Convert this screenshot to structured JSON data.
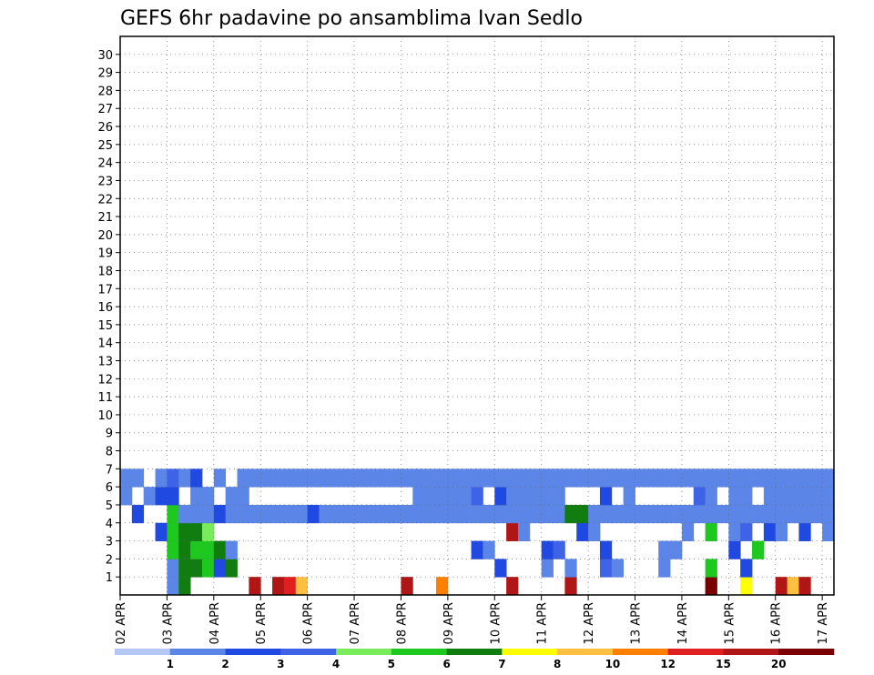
{
  "chart_data": {
    "type": "heatmap",
    "title": "GEFS 6hr padavine po ansamblima Ivan Sedlo",
    "xlabel": "",
    "ylabel": "",
    "x_tick_labels": [
      "02 APR",
      "03 APR",
      "04 APR",
      "05 APR",
      "06 APR",
      "07 APR",
      "08 APR",
      "09 APR",
      "10 APR",
      "11 APR",
      "12 APR",
      "13 APR",
      "14 APR",
      "15 APR",
      "16 APR",
      "17 APR"
    ],
    "y_tick_labels": [
      "1",
      "2",
      "3",
      "4",
      "5",
      "6",
      "7",
      "8",
      "9",
      "10",
      "11",
      "12",
      "13",
      "14",
      "15",
      "16",
      "17",
      "18",
      "19",
      "20",
      "21",
      "22",
      "23",
      "24",
      "25",
      "26",
      "27",
      "28",
      "29",
      "30"
    ],
    "members": 31,
    "steps": 61,
    "steps_per_day": 4,
    "grid": true,
    "colorbar": {
      "levels": [
        "1",
        "2",
        "3",
        "4",
        "5",
        "6",
        "7",
        "8",
        "10",
        "12",
        "15",
        "20"
      ],
      "colors": [
        "#b3c8f5",
        "#5b86e8",
        "#1f49e0",
        "#3f63e6",
        "#78ec5a",
        "#1ec81e",
        "#117d11",
        "#ffff00",
        "#ffbf40",
        "#ff7f00",
        "#e02020",
        "#b01616",
        "#7a0000"
      ]
    },
    "cells": [
      [
        0,
        4,
        1
      ],
      [
        0,
        5,
        6
      ],
      [
        0,
        11,
        11
      ],
      [
        0,
        13,
        11
      ],
      [
        0,
        14,
        10
      ],
      [
        0,
        15,
        8
      ],
      [
        0,
        24,
        11
      ],
      [
        0,
        27,
        9
      ],
      [
        0,
        33,
        11
      ],
      [
        0,
        38,
        11
      ],
      [
        0,
        50,
        12
      ],
      [
        0,
        53,
        7
      ],
      [
        0,
        56,
        11
      ],
      [
        0,
        57,
        8
      ],
      [
        0,
        58,
        11
      ],
      [
        1,
        4,
        1
      ],
      [
        1,
        5,
        6
      ],
      [
        1,
        6,
        6
      ],
      [
        1,
        7,
        5
      ],
      [
        1,
        8,
        2
      ],
      [
        1,
        9,
        6
      ],
      [
        1,
        32,
        2
      ],
      [
        1,
        36,
        1
      ],
      [
        1,
        38,
        1
      ],
      [
        1,
        41,
        3
      ],
      [
        1,
        42,
        1
      ],
      [
        1,
        46,
        1
      ],
      [
        1,
        50,
        5
      ],
      [
        1,
        53,
        2
      ],
      [
        2,
        4,
        5
      ],
      [
        2,
        5,
        6
      ],
      [
        2,
        6,
        5
      ],
      [
        2,
        7,
        5
      ],
      [
        2,
        8,
        6
      ],
      [
        2,
        9,
        1
      ],
      [
        2,
        30,
        2
      ],
      [
        2,
        31,
        1
      ],
      [
        2,
        36,
        2
      ],
      [
        2,
        37,
        3
      ],
      [
        2,
        41,
        2
      ],
      [
        2,
        46,
        1
      ],
      [
        2,
        47,
        1
      ],
      [
        2,
        52,
        2
      ],
      [
        2,
        54,
        5
      ],
      [
        3,
        3,
        2
      ],
      [
        3,
        4,
        5
      ],
      [
        3,
        5,
        6
      ],
      [
        3,
        6,
        6
      ],
      [
        3,
        7,
        4
      ],
      [
        3,
        33,
        11
      ],
      [
        3,
        34,
        1
      ],
      [
        3,
        39,
        2
      ],
      [
        3,
        40,
        1
      ],
      [
        3,
        48,
        1
      ],
      [
        3,
        50,
        5
      ],
      [
        3,
        52,
        1
      ],
      [
        3,
        53,
        3
      ],
      [
        3,
        55,
        2
      ],
      [
        3,
        56,
        1
      ],
      [
        3,
        58,
        2
      ],
      [
        3,
        60,
        1
      ],
      [
        4,
        1,
        2
      ],
      [
        4,
        4,
        5
      ],
      [
        4,
        5,
        1
      ],
      [
        4,
        6,
        1
      ],
      [
        4,
        7,
        1
      ],
      [
        4,
        8,
        2
      ],
      [
        4,
        9,
        1
      ],
      [
        4,
        10,
        1
      ],
      [
        4,
        11,
        1
      ],
      [
        4,
        12,
        1
      ],
      [
        4,
        13,
        1
      ],
      [
        4,
        14,
        1
      ],
      [
        4,
        15,
        1
      ],
      [
        4,
        16,
        2
      ],
      [
        4,
        17,
        1
      ],
      [
        4,
        18,
        1
      ],
      [
        4,
        19,
        1
      ],
      [
        4,
        20,
        1
      ],
      [
        4,
        21,
        1
      ],
      [
        4,
        22,
        1
      ],
      [
        4,
        23,
        1
      ],
      [
        4,
        24,
        1
      ],
      [
        4,
        25,
        1
      ],
      [
        4,
        26,
        1
      ],
      [
        4,
        27,
        1
      ],
      [
        4,
        28,
        1
      ],
      [
        4,
        29,
        1
      ],
      [
        4,
        30,
        1
      ],
      [
        4,
        31,
        1
      ],
      [
        4,
        32,
        1
      ],
      [
        4,
        33,
        1
      ],
      [
        4,
        34,
        1
      ],
      [
        4,
        35,
        1
      ],
      [
        4,
        36,
        1
      ],
      [
        4,
        37,
        1
      ],
      [
        4,
        38,
        6
      ],
      [
        4,
        39,
        6
      ],
      [
        4,
        40,
        1
      ],
      [
        4,
        41,
        1
      ],
      [
        4,
        42,
        1
      ],
      [
        4,
        43,
        1
      ],
      [
        4,
        44,
        1
      ],
      [
        4,
        45,
        1
      ],
      [
        4,
        46,
        1
      ],
      [
        4,
        47,
        1
      ],
      [
        4,
        48,
        1
      ],
      [
        4,
        49,
        1
      ],
      [
        4,
        50,
        1
      ],
      [
        4,
        51,
        1
      ],
      [
        4,
        52,
        1
      ],
      [
        4,
        53,
        1
      ],
      [
        4,
        54,
        1
      ],
      [
        4,
        55,
        1
      ],
      [
        4,
        56,
        1
      ],
      [
        4,
        57,
        1
      ],
      [
        4,
        58,
        1
      ],
      [
        4,
        59,
        1
      ],
      [
        4,
        60,
        1
      ],
      [
        5,
        0,
        1
      ],
      [
        5,
        2,
        1
      ],
      [
        5,
        3,
        2
      ],
      [
        5,
        4,
        2
      ],
      [
        5,
        6,
        1
      ],
      [
        5,
        7,
        1
      ],
      [
        5,
        9,
        1
      ],
      [
        5,
        10,
        1
      ],
      [
        5,
        25,
        1
      ],
      [
        5,
        26,
        1
      ],
      [
        5,
        27,
        1
      ],
      [
        5,
        28,
        1
      ],
      [
        5,
        29,
        1
      ],
      [
        5,
        30,
        3
      ],
      [
        5,
        32,
        2
      ],
      [
        5,
        33,
        1
      ],
      [
        5,
        34,
        1
      ],
      [
        5,
        35,
        1
      ],
      [
        5,
        36,
        1
      ],
      [
        5,
        37,
        1
      ],
      [
        5,
        41,
        2
      ],
      [
        5,
        43,
        1
      ],
      [
        5,
        49,
        3
      ],
      [
        5,
        50,
        1
      ],
      [
        5,
        52,
        1
      ],
      [
        5,
        53,
        1
      ],
      [
        5,
        55,
        1
      ],
      [
        5,
        56,
        1
      ],
      [
        5,
        57,
        1
      ],
      [
        5,
        58,
        1
      ],
      [
        5,
        59,
        1
      ],
      [
        5,
        60,
        1
      ],
      [
        6,
        0,
        1
      ],
      [
        6,
        1,
        1
      ],
      [
        6,
        3,
        1
      ],
      [
        6,
        4,
        3
      ],
      [
        6,
        5,
        1
      ],
      [
        6,
        6,
        2
      ],
      [
        6,
        8,
        1
      ],
      [
        6,
        10,
        1
      ],
      [
        6,
        11,
        1
      ],
      [
        6,
        12,
        1
      ],
      [
        6,
        13,
        1
      ],
      [
        6,
        14,
        1
      ],
      [
        6,
        15,
        1
      ],
      [
        6,
        16,
        1
      ],
      [
        6,
        17,
        1
      ],
      [
        6,
        18,
        1
      ],
      [
        6,
        19,
        1
      ],
      [
        6,
        20,
        1
      ],
      [
        6,
        21,
        1
      ],
      [
        6,
        22,
        1
      ],
      [
        6,
        23,
        1
      ],
      [
        6,
        24,
        1
      ],
      [
        6,
        25,
        1
      ],
      [
        6,
        26,
        1
      ],
      [
        6,
        27,
        1
      ],
      [
        6,
        28,
        1
      ],
      [
        6,
        29,
        1
      ],
      [
        6,
        30,
        1
      ],
      [
        6,
        31,
        1
      ],
      [
        6,
        32,
        1
      ],
      [
        6,
        33,
        1
      ],
      [
        6,
        34,
        1
      ],
      [
        6,
        35,
        1
      ],
      [
        6,
        36,
        1
      ],
      [
        6,
        37,
        1
      ],
      [
        6,
        38,
        1
      ],
      [
        6,
        39,
        1
      ],
      [
        6,
        40,
        1
      ],
      [
        6,
        41,
        1
      ],
      [
        6,
        42,
        1
      ],
      [
        6,
        43,
        1
      ],
      [
        6,
        44,
        1
      ],
      [
        6,
        45,
        1
      ],
      [
        6,
        46,
        1
      ],
      [
        6,
        47,
        1
      ],
      [
        6,
        48,
        1
      ],
      [
        6,
        49,
        1
      ],
      [
        6,
        50,
        1
      ],
      [
        6,
        51,
        1
      ],
      [
        6,
        52,
        1
      ],
      [
        6,
        53,
        1
      ],
      [
        6,
        54,
        1
      ],
      [
        6,
        55,
        1
      ],
      [
        6,
        56,
        1
      ],
      [
        6,
        57,
        1
      ],
      [
        6,
        58,
        1
      ],
      [
        6,
        59,
        1
      ],
      [
        6,
        60,
        1
      ]
    ]
  }
}
